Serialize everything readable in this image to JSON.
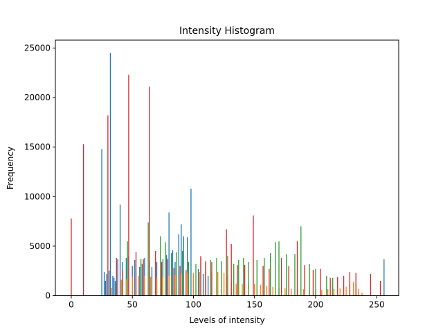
{
  "chart_data": {
    "type": "bar",
    "title": "Intensity Histogram",
    "xlabel": "Levels of intensity",
    "ylabel": "Frequency",
    "xlim": [
      -13,
      268
    ],
    "ylim": [
      0,
      25800
    ],
    "xticks": [
      0,
      50,
      100,
      150,
      200,
      250
    ],
    "yticks": [
      0,
      5000,
      10000,
      15000,
      20000,
      25000
    ],
    "grid": false,
    "colors": [
      "#1f77b4",
      "#ff7f0e",
      "#2ca02c",
      "#d62728"
    ],
    "peaks": [
      [
        [
          25,
          14800
        ],
        [
          27,
          2400
        ],
        [
          28,
          1500
        ],
        [
          29,
          2200
        ],
        [
          31,
          2500
        ],
        [
          32,
          24500
        ],
        [
          34,
          2000
        ],
        [
          35,
          1800
        ],
        [
          36,
          1500
        ],
        [
          38,
          3700
        ],
        [
          40,
          9200
        ],
        [
          42,
          3400
        ],
        [
          45,
          3800
        ],
        [
          47,
          4000
        ],
        [
          50,
          3000
        ],
        [
          52,
          3600
        ],
        [
          56,
          2900
        ],
        [
          58,
          3200
        ],
        [
          60,
          3800
        ],
        [
          64,
          3500
        ],
        [
          66,
          2900
        ],
        [
          70,
          3400
        ],
        [
          75,
          3700
        ],
        [
          78,
          4100
        ],
        [
          80,
          8400
        ],
        [
          83,
          4600
        ],
        [
          85,
          3400
        ],
        [
          88,
          6200
        ],
        [
          90,
          7200
        ],
        [
          92,
          6000
        ],
        [
          95,
          5900
        ],
        [
          98,
          10800
        ],
        [
          100,
          2300
        ],
        [
          104,
          2700
        ],
        [
          108,
          2200
        ],
        [
          112,
          2000
        ],
        [
          256,
          3700
        ]
      ],
      [
        [
          33,
          800
        ],
        [
          37,
          1300
        ],
        [
          41,
          1600
        ],
        [
          45,
          1700
        ],
        [
          50,
          1900
        ],
        [
          55,
          2000
        ],
        [
          60,
          2000
        ],
        [
          65,
          1900
        ],
        [
          70,
          1800
        ],
        [
          75,
          1900
        ],
        [
          80,
          2000
        ],
        [
          85,
          2100
        ],
        [
          90,
          2200
        ],
        [
          95,
          2300
        ],
        [
          100,
          2300
        ],
        [
          105,
          2400
        ],
        [
          110,
          2400
        ],
        [
          115,
          2400
        ],
        [
          120,
          2400
        ],
        [
          125,
          2300
        ],
        [
          128,
          2100
        ],
        [
          131,
          1400
        ],
        [
          135,
          1200
        ],
        [
          140,
          1200
        ],
        [
          145,
          1300
        ],
        [
          150,
          1200
        ],
        [
          155,
          1100
        ],
        [
          160,
          1000
        ],
        [
          165,
          900
        ],
        [
          170,
          800
        ],
        [
          175,
          750
        ],
        [
          180,
          700
        ],
        [
          185,
          700
        ],
        [
          190,
          650
        ],
        [
          195,
          650
        ],
        [
          200,
          600
        ],
        [
          205,
          600
        ],
        [
          210,
          650
        ],
        [
          215,
          700
        ],
        [
          220,
          750
        ],
        [
          225,
          900
        ],
        [
          228,
          1200
        ],
        [
          231,
          1400
        ],
        [
          233,
          1200
        ],
        [
          235,
          700
        ],
        [
          238,
          300
        ]
      ],
      [
        [
          46,
          5500
        ],
        [
          57,
          3700
        ],
        [
          63,
          7400
        ],
        [
          73,
          6000
        ],
        [
          77,
          5400
        ],
        [
          82,
          4300
        ],
        [
          86,
          4400
        ],
        [
          91,
          4500
        ],
        [
          96,
          3400
        ],
        [
          102,
          3200
        ],
        [
          106,
          3800
        ],
        [
          110,
          3300
        ],
        [
          114,
          3600
        ],
        [
          119,
          3800
        ],
        [
          123,
          3500
        ],
        [
          128,
          4000
        ],
        [
          133,
          3200
        ],
        [
          137,
          3600
        ],
        [
          141,
          3800
        ],
        [
          145,
          3400
        ],
        [
          152,
          3600
        ],
        [
          158,
          3800
        ],
        [
          163,
          4300
        ],
        [
          167,
          5400
        ],
        [
          170,
          5500
        ],
        [
          176,
          4200
        ],
        [
          183,
          4200
        ],
        [
          188,
          7000
        ],
        [
          195,
          3200
        ],
        [
          200,
          2700
        ],
        [
          209,
          2000
        ],
        [
          214,
          1800
        ]
      ],
      [
        [
          0,
          7800
        ],
        [
          10,
          15300
        ],
        [
          30,
          18200
        ],
        [
          37,
          3800
        ],
        [
          42,
          2600
        ],
        [
          47,
          22300
        ],
        [
          53,
          4400
        ],
        [
          59,
          3700
        ],
        [
          64,
          21100
        ],
        [
          69,
          4500
        ],
        [
          74,
          3400
        ],
        [
          79,
          3700
        ],
        [
          84,
          2800
        ],
        [
          89,
          3000
        ],
        [
          94,
          2600
        ],
        [
          106,
          4000
        ],
        [
          110,
          3500
        ],
        [
          115,
          3400
        ],
        [
          127,
          6700
        ],
        [
          131,
          5200
        ],
        [
          136,
          3100
        ],
        [
          142,
          3100
        ],
        [
          149,
          8100
        ],
        [
          157,
          3000
        ],
        [
          162,
          2700
        ],
        [
          172,
          3800
        ],
        [
          178,
          3000
        ],
        [
          185,
          5500
        ],
        [
          191,
          3100
        ],
        [
          198,
          2600
        ],
        [
          204,
          2700
        ],
        [
          212,
          1800
        ],
        [
          218,
          1900
        ],
        [
          223,
          2000
        ],
        [
          228,
          2400
        ],
        [
          233,
          2300
        ],
        [
          245,
          2200
        ],
        [
          253,
          1500
        ]
      ]
    ]
  }
}
